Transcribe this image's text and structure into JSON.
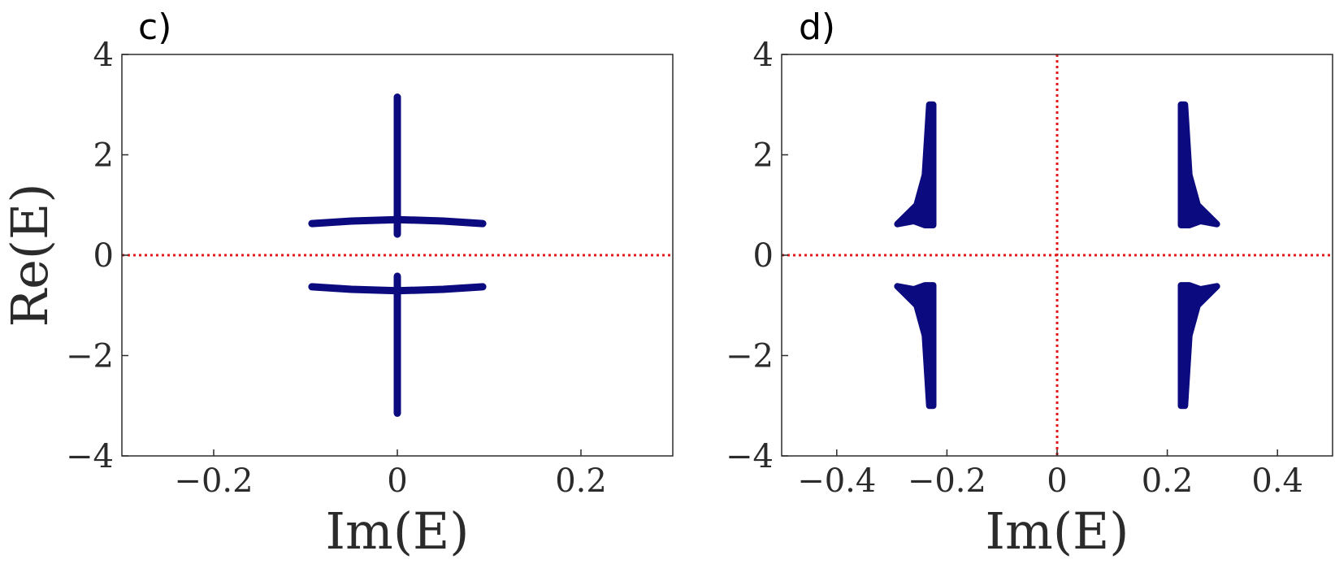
{
  "chart_data": [
    {
      "type": "scatter",
      "panel_label": "c)",
      "xlabel": "Im(E)",
      "ylabel": "Re(E)",
      "xlim": [
        -0.3,
        0.3
      ],
      "ylim": [
        -4,
        4
      ],
      "xticks": [
        -0.2,
        0,
        0.2
      ],
      "xtick_labels": [
        "−0.2",
        "0",
        "0.2"
      ],
      "yticks": [
        -4,
        -2,
        0,
        2,
        4
      ],
      "ytick_labels": [
        "−4",
        "−2",
        "0",
        "2",
        "4"
      ],
      "grid": false,
      "reference_lines": [
        {
          "axis": "y",
          "value": 0,
          "style": "dotted",
          "color": "#e31a1c"
        }
      ],
      "color": "#0b0b7f",
      "series": [
        {
          "shape": "curve",
          "points": [
            [
              -0.093,
              0.63
            ],
            [
              -0.05,
              0.68
            ],
            [
              0,
              0.71
            ],
            [
              0.05,
              0.68
            ],
            [
              0.093,
              0.63
            ]
          ]
        },
        {
          "shape": "curve",
          "points": [
            [
              -0.093,
              -0.63
            ],
            [
              -0.05,
              -0.68
            ],
            [
              0,
              -0.71
            ],
            [
              0.05,
              -0.68
            ],
            [
              0.093,
              -0.63
            ]
          ]
        },
        {
          "shape": "segment",
          "points": [
            [
              0,
              0.42
            ],
            [
              0,
              3.15
            ]
          ]
        },
        {
          "shape": "segment",
          "points": [
            [
              0,
              -0.42
            ],
            [
              0,
              -3.15
            ]
          ]
        }
      ]
    },
    {
      "type": "scatter",
      "panel_label": "d)",
      "xlabel": "Im(E)",
      "ylabel": "",
      "xlim": [
        -0.5,
        0.5
      ],
      "ylim": [
        -4,
        4
      ],
      "xticks": [
        -0.4,
        -0.2,
        0,
        0.2,
        0.4
      ],
      "xtick_labels": [
        "−0.4",
        "−0.2",
        "0",
        "0.2",
        "0.4"
      ],
      "yticks": [
        -4,
        -2,
        0,
        2,
        4
      ],
      "ytick_labels": [
        "−4",
        "−2",
        "0",
        "2",
        "4"
      ],
      "grid": false,
      "reference_lines": [
        {
          "axis": "y",
          "value": 0,
          "style": "dotted",
          "color": "#e31a1c"
        },
        {
          "axis": "x",
          "value": 0,
          "style": "dotted",
          "color": "#e31a1c"
        }
      ],
      "color": "#0b0b7f",
      "series": [
        {
          "shape": "region",
          "points": [
            [
              0.225,
              0.6
            ],
            [
              0.225,
              3.0
            ],
            [
              0.232,
              3.0
            ],
            [
              0.24,
              1.6
            ],
            [
              0.255,
              1.0
            ],
            [
              0.29,
              0.62
            ],
            [
              0.26,
              0.68
            ],
            [
              0.24,
              0.6
            ]
          ]
        },
        {
          "shape": "region",
          "points": [
            [
              -0.225,
              0.6
            ],
            [
              -0.225,
              3.0
            ],
            [
              -0.232,
              3.0
            ],
            [
              -0.24,
              1.6
            ],
            [
              -0.255,
              1.0
            ],
            [
              -0.29,
              0.62
            ],
            [
              -0.26,
              0.68
            ],
            [
              -0.24,
              0.6
            ]
          ]
        },
        {
          "shape": "region",
          "points": [
            [
              0.225,
              -0.6
            ],
            [
              0.225,
              -3.0
            ],
            [
              0.232,
              -3.0
            ],
            [
              0.24,
              -1.6
            ],
            [
              0.255,
              -1.0
            ],
            [
              0.29,
              -0.62
            ],
            [
              0.26,
              -0.68
            ],
            [
              0.24,
              -0.6
            ]
          ]
        },
        {
          "shape": "region",
          "points": [
            [
              -0.225,
              -0.6
            ],
            [
              -0.225,
              -3.0
            ],
            [
              -0.232,
              -3.0
            ],
            [
              -0.24,
              -1.6
            ],
            [
              -0.255,
              -1.0
            ],
            [
              -0.29,
              -0.62
            ],
            [
              -0.26,
              -0.68
            ],
            [
              -0.24,
              -0.6
            ]
          ]
        }
      ]
    }
  ]
}
